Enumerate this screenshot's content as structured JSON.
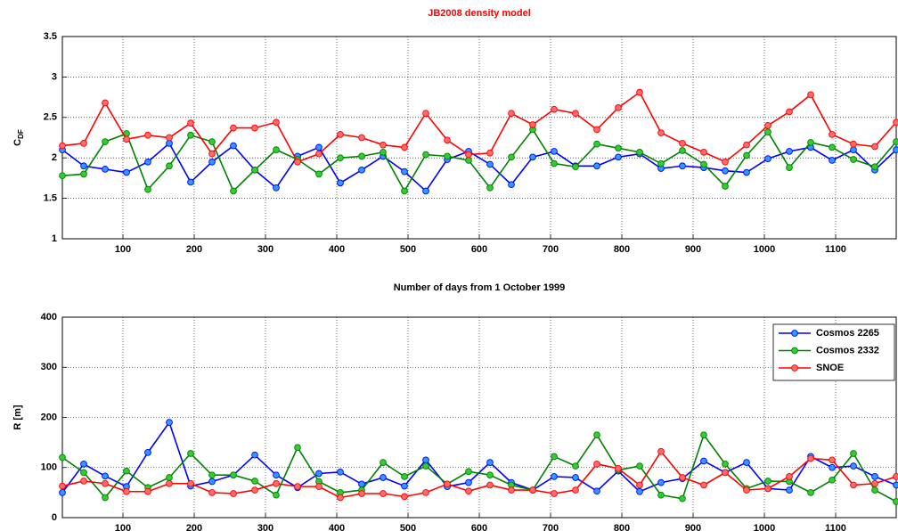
{
  "chart_data": [
    {
      "type": "line",
      "title": "JB2008 density model",
      "title_color": "#ff0000",
      "xlabel": "Number of days from 1 October 1999",
      "ylabel": "C",
      "ylabel_subscript": "DF",
      "x": [
        15,
        45,
        75,
        105,
        135,
        165,
        195,
        225,
        255,
        285,
        315,
        345,
        375,
        405,
        435,
        465,
        495,
        525,
        555,
        585,
        615,
        645,
        675,
        705,
        735,
        765,
        795,
        825,
        855,
        885,
        915,
        945,
        975,
        1005,
        1035,
        1065,
        1095,
        1125,
        1155,
        1185
      ],
      "xlim": [
        15,
        1185
      ],
      "xticks": [
        100,
        200,
        300,
        400,
        500,
        600,
        700,
        800,
        900,
        1000,
        1100
      ],
      "ylim": [
        1,
        3.5
      ],
      "yticks": [
        1,
        1.5,
        2,
        2.5,
        3,
        3.5
      ],
      "grid": true,
      "series": [
        {
          "color": "#0000ff",
          "marker_color": "#2f9bff",
          "values": [
            2.1,
            1.9,
            1.86,
            1.82,
            1.95,
            2.18,
            1.7,
            1.95,
            2.15,
            1.85,
            1.63,
            2.02,
            2.13,
            1.69,
            1.85,
            2.02,
            1.83,
            1.59,
            1.98,
            2.08,
            1.92,
            1.67,
            2.01,
            2.08,
            1.9,
            1.9,
            2.01,
            2.05,
            1.87,
            1.9,
            1.88,
            1.84,
            1.82,
            1.99,
            2.08,
            2.13,
            1.97,
            2.1,
            1.85,
            2.1
          ]
        },
        {
          "color": "#008000",
          "marker_color": "#33cc33",
          "values": [
            1.78,
            1.8,
            2.2,
            2.3,
            1.61,
            1.9,
            2.28,
            2.2,
            1.59,
            1.85,
            2.1,
            1.98,
            1.8,
            2.0,
            2.02,
            2.07,
            1.59,
            2.04,
            2.02,
            1.97,
            1.63,
            2.01,
            2.35,
            1.93,
            1.89,
            2.17,
            2.12,
            2.07,
            1.93,
            2.09,
            1.92,
            1.65,
            2.03,
            2.32,
            1.88,
            2.19,
            2.13,
            1.98,
            1.89,
            2.2
          ]
        },
        {
          "color": "#ff0000",
          "marker_color": "#ff6b6b",
          "values": [
            2.15,
            2.18,
            2.68,
            2.23,
            2.28,
            2.25,
            2.43,
            2.05,
            2.37,
            2.37,
            2.44,
            1.95,
            2.05,
            2.29,
            2.25,
            2.16,
            2.13,
            2.55,
            2.22,
            2.04,
            2.06,
            2.55,
            2.41,
            2.6,
            2.55,
            2.35,
            2.62,
            2.81,
            2.31,
            2.18,
            2.07,
            1.95,
            2.16,
            2.4,
            2.57,
            2.78,
            2.29,
            2.17,
            2.14,
            2.44
          ]
        }
      ]
    },
    {
      "type": "line",
      "ylabel": "R [m]",
      "x": [
        15,
        45,
        75,
        105,
        135,
        165,
        195,
        225,
        255,
        285,
        315,
        345,
        375,
        405,
        435,
        465,
        495,
        525,
        555,
        585,
        615,
        645,
        675,
        705,
        735,
        765,
        795,
        825,
        855,
        885,
        915,
        945,
        975,
        1005,
        1035,
        1065,
        1095,
        1125,
        1155,
        1185
      ],
      "xlim": [
        15,
        1185
      ],
      "xticks": [
        100,
        200,
        300,
        400,
        500,
        600,
        700,
        800,
        900,
        1000,
        1100
      ],
      "ylim": [
        0,
        400
      ],
      "yticks": [
        0,
        100,
        200,
        300,
        400
      ],
      "grid": true,
      "legend": "northeast",
      "series": [
        {
          "name": "Cosmos 2265",
          "color": "#0000ff",
          "marker_color": "#2f9bff",
          "values": [
            50,
            107,
            83,
            62,
            130,
            190,
            63,
            72,
            85,
            125,
            85,
            60,
            88,
            91,
            67,
            80,
            63,
            115,
            62,
            70,
            110,
            70,
            55,
            82,
            80,
            53,
            93,
            52,
            70,
            78,
            113,
            90,
            110,
            58,
            55,
            122,
            100,
            103,
            82,
            65
          ]
        },
        {
          "name": "Cosmos 2332",
          "color": "#008000",
          "marker_color": "#33cc33",
          "values": [
            120,
            90,
            40,
            93,
            60,
            80,
            128,
            85,
            85,
            73,
            45,
            140,
            72,
            50,
            55,
            110,
            82,
            103,
            67,
            92,
            85,
            65,
            55,
            122,
            103,
            165,
            95,
            103,
            45,
            38,
            165,
            107,
            58,
            73,
            72,
            50,
            75,
            128,
            55,
            32
          ]
        },
        {
          "name": "SNOE",
          "color": "#ff0000",
          "marker_color": "#ff6b6b",
          "values": [
            63,
            73,
            68,
            52,
            52,
            68,
            68,
            50,
            48,
            55,
            68,
            62,
            62,
            40,
            48,
            48,
            42,
            50,
            67,
            53,
            65,
            55,
            55,
            48,
            55,
            107,
            98,
            65,
            132,
            80,
            65,
            90,
            55,
            58,
            82,
            118,
            115,
            65,
            68,
            82
          ]
        }
      ]
    }
  ]
}
